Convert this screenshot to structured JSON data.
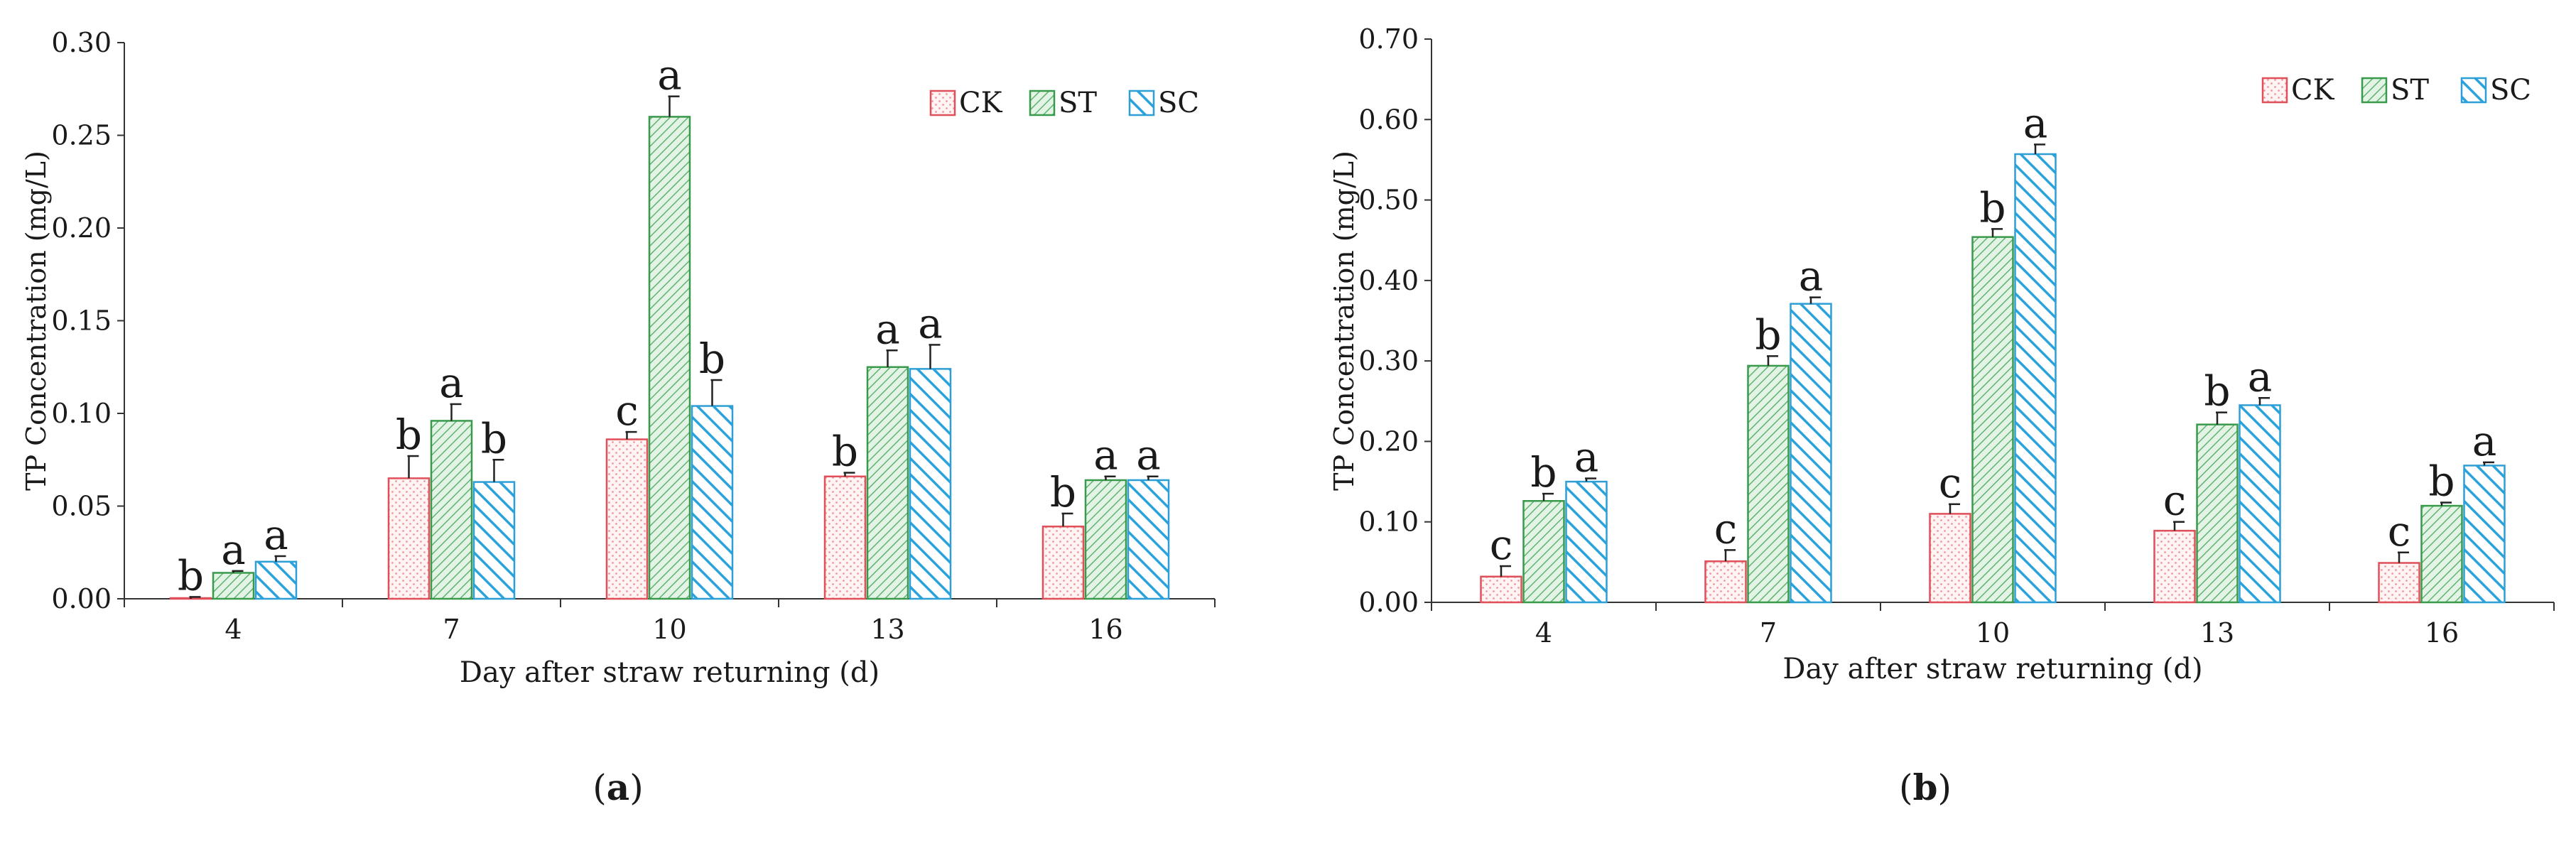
{
  "panels": [
    {
      "caption": "a",
      "chart_data": {
        "type": "bar",
        "categories": [
          "4",
          "7",
          "10",
          "13",
          "16"
        ],
        "xlabel": "Day after straw returning (d)",
        "ylabel": "TP Concentration (mg/L)",
        "ylim": [
          0,
          0.3
        ],
        "yticks": [
          "0.00",
          "0.05",
          "0.10",
          "0.15",
          "0.20",
          "0.25",
          "0.30"
        ],
        "legend_position": "top-right",
        "series": [
          {
            "name": "CK",
            "values": [
              0.0,
              0.065,
              0.086,
              0.066,
              0.039
            ],
            "errors": [
              0.001,
              0.012,
              0.004,
              0.002,
              0.007
            ],
            "letters": [
              "b",
              "b",
              "c",
              "b",
              "b"
            ]
          },
          {
            "name": "ST",
            "values": [
              0.014,
              0.096,
              0.26,
              0.125,
              0.064
            ],
            "errors": [
              0.001,
              0.009,
              0.011,
              0.009,
              0.002
            ],
            "letters": [
              "a",
              "a",
              "a",
              "a",
              "a"
            ]
          },
          {
            "name": "SC",
            "values": [
              0.02,
              0.063,
              0.104,
              0.124,
              0.064
            ],
            "errors": [
              0.003,
              0.012,
              0.014,
              0.013,
              0.002
            ],
            "letters": [
              "a",
              "b",
              "b",
              "a",
              "a"
            ]
          }
        ]
      }
    },
    {
      "caption": "b",
      "chart_data": {
        "type": "bar",
        "categories": [
          "4",
          "7",
          "10",
          "13",
          "16"
        ],
        "xlabel": "Day after straw returning (d)",
        "ylabel": "TP Concentration (mg/L)",
        "ylim": [
          0,
          0.7
        ],
        "yticks": [
          "0.00",
          "0.10",
          "0.20",
          "0.30",
          "0.40",
          "0.50",
          "0.60",
          "0.70"
        ],
        "legend_position": "top-right",
        "series": [
          {
            "name": "CK",
            "values": [
              0.032,
              0.051,
              0.11,
              0.089,
              0.049
            ],
            "errors": [
              0.013,
              0.014,
              0.012,
              0.011,
              0.013
            ],
            "letters": [
              "c",
              "c",
              "c",
              "c",
              "c"
            ]
          },
          {
            "name": "ST",
            "values": [
              0.126,
              0.294,
              0.454,
              0.221,
              0.12
            ],
            "errors": [
              0.009,
              0.012,
              0.01,
              0.015,
              0.004
            ],
            "letters": [
              "b",
              "b",
              "b",
              "b",
              "b"
            ]
          },
          {
            "name": "SC",
            "values": [
              0.15,
              0.371,
              0.557,
              0.245,
              0.17
            ],
            "errors": [
              0.004,
              0.008,
              0.012,
              0.009,
              0.004
            ],
            "letters": [
              "a",
              "a",
              "a",
              "a",
              "a"
            ]
          }
        ]
      }
    }
  ],
  "styles": {
    "CK": {
      "stroke": "#e0505a",
      "fill": "#fff3f3",
      "pattern": "dots"
    },
    "ST": {
      "stroke": "#3a9a4c",
      "fill": "#d8efdc",
      "pattern": "hatch"
    },
    "SC": {
      "stroke": "#2e9fd6",
      "fill": "#ffffff",
      "pattern": "stripes"
    }
  }
}
